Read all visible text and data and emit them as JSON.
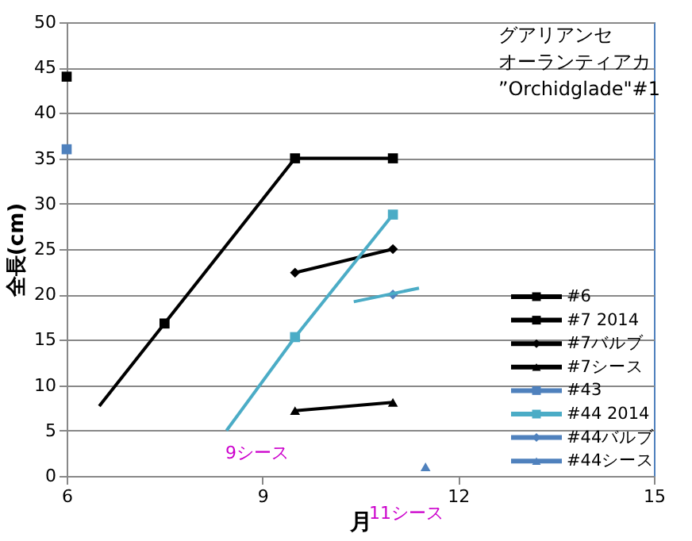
{
  "chart_data": {
    "type": "line",
    "title": "グアリアンセオーランティアカ",
    "subtitle": "”Orchidglade\"#1",
    "xlabel": "月",
    "ylabel": "全長(cm)",
    "xlim": [
      6,
      15
    ],
    "xticks": [
      6,
      9,
      12,
      15
    ],
    "ylim": [
      0,
      50
    ],
    "yticks": [
      0,
      5,
      10,
      15,
      20,
      25,
      30,
      35,
      40,
      45,
      50
    ],
    "grid": "y",
    "legend": "right",
    "series": [
      {
        "name": "#6",
        "color": "#000000",
        "marker": "square",
        "x": [
          6
        ],
        "values": [
          44
        ]
      },
      {
        "name": "#7 2014",
        "color": "#000000",
        "marker": "square",
        "x": [
          7.5,
          9.5,
          11
        ],
        "values": [
          16.8,
          35,
          35
        ]
      },
      {
        "name": "#7バルブ",
        "color": "#000000",
        "marker": "diamond",
        "x": [
          9.5,
          11
        ],
        "values": [
          22.4,
          25
        ]
      },
      {
        "name": "#7シース",
        "color": "#000000",
        "marker": "triangle",
        "x": [
          9.5,
          11
        ],
        "values": [
          7.2,
          8.1
        ]
      },
      {
        "name": "#43",
        "color": "#4f81bd",
        "marker": "square",
        "x": [
          6
        ],
        "values": [
          36
        ]
      },
      {
        "name": "#44 2014",
        "color": "#4bacc6",
        "marker": "square",
        "x": [
          9.5,
          11
        ],
        "values": [
          15.3,
          28.8
        ]
      },
      {
        "name": "#44バルブ",
        "color": "#4f81bd",
        "marker": "diamond",
        "x": [
          11
        ],
        "values": [
          20
        ]
      },
      {
        "name": "#44シース",
        "color": "#4f81bd",
        "marker": "triangle",
        "x": [
          11.5
        ],
        "values": [
          1
        ]
      },
      {
        "type": "line",
        "color": "#000000",
        "marker": "none",
        "x": [
          6.5,
          7.5
        ],
        "values": [
          7.7,
          16.8
        ]
      },
      {
        "type": "line",
        "color": "#4bacc6",
        "marker": "none",
        "x": [
          8.45,
          9.5
        ],
        "values": [
          5,
          15.3
        ]
      },
      {
        "type": "line",
        "color": "#4bacc6",
        "marker": "none",
        "x": [
          10.4,
          11.4
        ],
        "values": [
          19.2,
          20.7
        ]
      }
    ],
    "annotations": [
      "9シース",
      "11シース"
    ]
  }
}
